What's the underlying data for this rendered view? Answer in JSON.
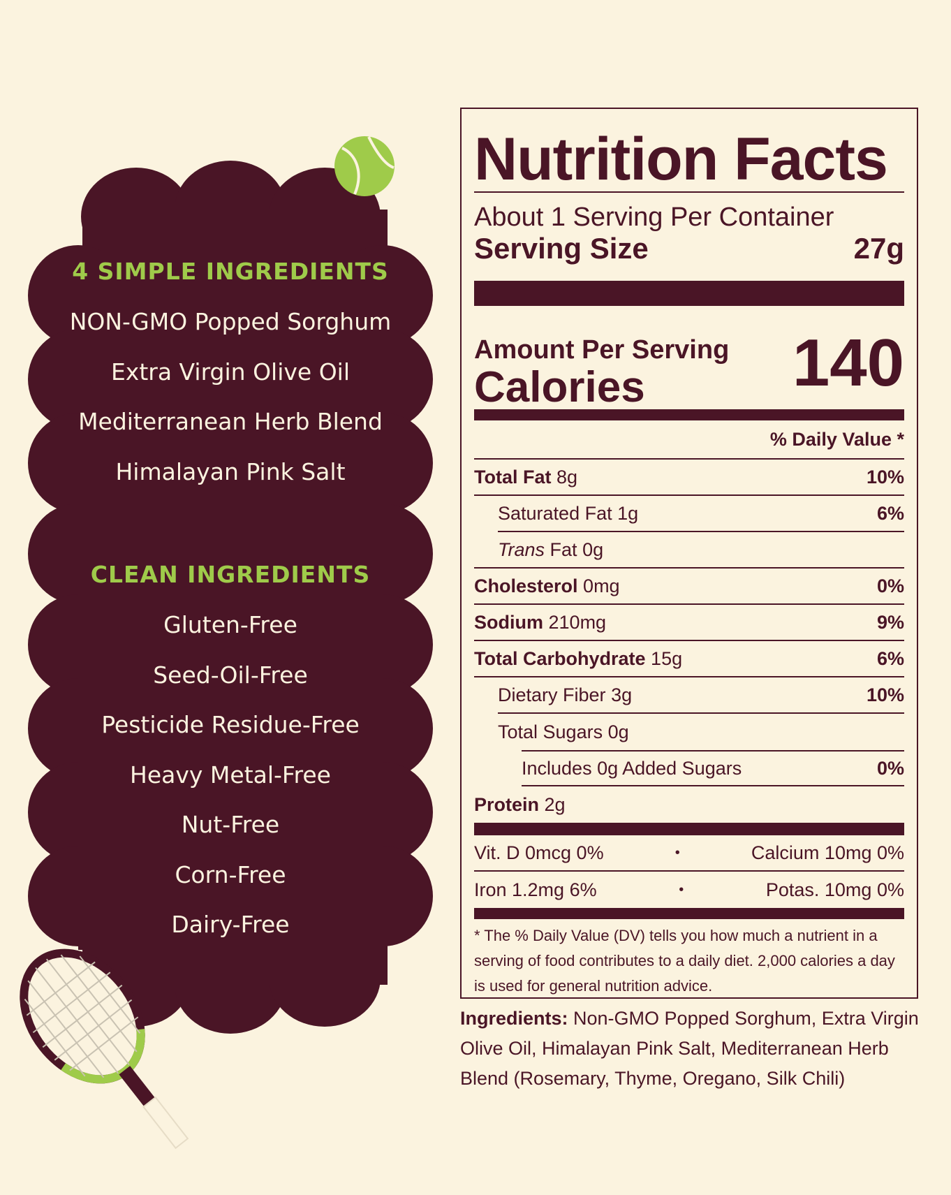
{
  "colors": {
    "background": "#fbf3df",
    "plum": "#4a1526",
    "green": "#9fcb4a",
    "cream": "#fbf3df"
  },
  "icons": [
    "tennis-ball-icon",
    "tennis-racket-icon"
  ],
  "simple_ingredients": {
    "heading": "4 SIMPLE INGREDIENTS",
    "items": [
      "NON-GMO Popped Sorghum",
      "Extra Virgin Olive Oil",
      "Mediterranean Herb Blend",
      "Himalayan Pink Salt"
    ]
  },
  "clean_ingredients": {
    "heading": "CLEAN INGREDIENTS",
    "items": [
      "Gluten-Free",
      "Seed-Oil-Free",
      "Pesticide Residue-Free",
      "Heavy Metal-Free",
      "Nut-Free",
      "Corn-Free",
      "Dairy-Free"
    ]
  },
  "nutrition": {
    "title": "Nutrition Facts",
    "servings_per_container": "About 1 Serving Per Container",
    "serving_size_label": "Serving Size",
    "serving_size_value": "27g",
    "amount_per_serving": "Amount Per Serving",
    "calories_label": "Calories",
    "calories_value": "140",
    "daily_value_header": "% Daily Value *",
    "rows": [
      {
        "label": "Total Fat",
        "amount": "8g",
        "dv": "10%"
      },
      {
        "label": "Saturated Fat",
        "amount": "1g",
        "dv": "6%"
      },
      {
        "label_italic": "Trans",
        "label": "Fat",
        "amount": "0g",
        "dv": ""
      },
      {
        "label": "Cholesterol",
        "amount": "0mg",
        "dv": "0%"
      },
      {
        "label": "Sodium",
        "amount": "210mg",
        "dv": "9%"
      },
      {
        "label": "Total Carbohydrate",
        "amount": "15g",
        "dv": "6%"
      },
      {
        "label": "Dietary Fiber",
        "amount": "3g",
        "dv": "10%"
      },
      {
        "label": "Total Sugars",
        "amount": "0g",
        "dv": ""
      },
      {
        "label": "Includes 0g Added Sugars",
        "amount": "",
        "dv": "0%"
      },
      {
        "label": "Protein",
        "amount": "2g",
        "dv": ""
      }
    ],
    "vitamins": [
      {
        "left": "Vit. D 0mcg 0%",
        "right": "Calcium 10mg 0%"
      },
      {
        "left": "Iron 1.2mg 6%",
        "right": "Potas. 10mg 0%"
      }
    ],
    "separator": "•",
    "footnote": "* The % Daily Value (DV) tells you how much a nutrient in a serving of food contributes to a daily diet. 2,000 calories a day is used for general nutrition advice."
  },
  "ingredients_statement": {
    "label": "Ingredients:",
    "text": "Non-GMO Popped Sorghum, Extra Virgin Olive Oil, Himalayan Pink Salt, Mediterranean Herb Blend (Rosemary, Thyme, Oregano, Silk Chili)"
  }
}
